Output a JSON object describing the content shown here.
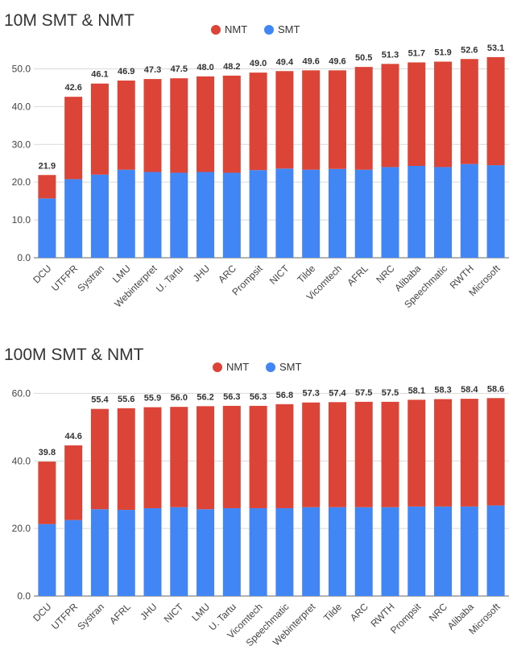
{
  "colors": {
    "nmt": "#db4437",
    "smt": "#4285f4"
  },
  "chart_data": [
    {
      "type": "bar",
      "stacked": true,
      "title": "10M SMT & NMT",
      "legend": [
        "NMT",
        "SMT"
      ],
      "legend_position": "top",
      "ylim": [
        0,
        55
      ],
      "yticks": [
        "0.0",
        "10.0",
        "20.0",
        "30.0",
        "40.0",
        "50.0"
      ],
      "grid": true,
      "categories": [
        "DCU",
        "UTFPR",
        "Systran",
        "LMU",
        "Webinterpret",
        "U. Tartu",
        "JHU",
        "ARC",
        "Prompsit",
        "NICT",
        "Tilde",
        "Vicomtech",
        "AFRL",
        "NRC",
        "Alibaba",
        "Speechmatic",
        "RWTH",
        "Microsoft"
      ],
      "totals": [
        "21.9",
        "42.6",
        "46.1",
        "46.9",
        "47.3",
        "47.5",
        "48.0",
        "48.2",
        "49.0",
        "49.4",
        "49.6",
        "49.6",
        "50.5",
        "51.3",
        "51.7",
        "51.9",
        "52.6",
        "53.1"
      ],
      "series": [
        {
          "name": "SMT",
          "values": [
            15.7,
            20.8,
            22.0,
            23.3,
            22.7,
            22.5,
            22.7,
            22.5,
            23.2,
            23.6,
            23.3,
            23.5,
            23.3,
            24.0,
            24.3,
            24.0,
            24.8,
            24.5
          ]
        },
        {
          "name": "NMT",
          "values": [
            6.2,
            21.8,
            24.1,
            23.6,
            24.6,
            25.0,
            25.3,
            25.7,
            25.8,
            25.8,
            26.3,
            26.1,
            27.2,
            27.3,
            27.4,
            27.9,
            27.8,
            28.6
          ]
        }
      ]
    },
    {
      "type": "bar",
      "stacked": true,
      "title": "100M SMT & NMT",
      "legend": [
        "NMT",
        "SMT"
      ],
      "legend_position": "top",
      "ylim": [
        0,
        62
      ],
      "yticks": [
        "0.0",
        "20.0",
        "40.0",
        "60.0"
      ],
      "grid": true,
      "categories": [
        "DCU",
        "UTFPR",
        "Systran",
        "AFRL",
        "JHU",
        "NICT",
        "LMU",
        "U. Tartu",
        "Vicomtech",
        "Speechmatic",
        "Webinterpret",
        "Tilde",
        "ARC",
        "RWTH",
        "Prompsit",
        "NRC",
        "Alibaba",
        "Microsoft"
      ],
      "totals": [
        "39.8",
        "44.6",
        "55.4",
        "55.6",
        "55.9",
        "56.0",
        "56.2",
        "56.3",
        "56.3",
        "56.8",
        "57.3",
        "57.4",
        "57.5",
        "57.5",
        "58.1",
        "58.3",
        "58.4",
        "58.6"
      ],
      "series": [
        {
          "name": "SMT",
          "values": [
            21.3,
            22.5,
            25.7,
            25.5,
            26.0,
            26.3,
            25.7,
            26.0,
            26.0,
            26.0,
            26.3,
            26.3,
            26.3,
            26.3,
            26.5,
            26.5,
            26.5,
            26.8
          ]
        },
        {
          "name": "NMT",
          "values": [
            18.5,
            22.1,
            29.7,
            30.1,
            29.9,
            29.7,
            30.5,
            30.3,
            30.3,
            30.8,
            31.0,
            31.1,
            31.2,
            31.2,
            31.6,
            31.8,
            31.9,
            31.8
          ]
        }
      ]
    }
  ]
}
